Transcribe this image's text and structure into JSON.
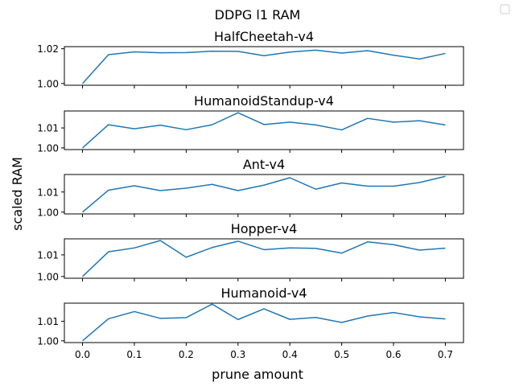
{
  "figure": {
    "suptitle": "DDPG l1 RAM",
    "ylabel": "scaled RAM",
    "xlabel": "prune amount"
  },
  "chart_data": [
    {
      "type": "line",
      "title": "HalfCheetah-v4",
      "x": [
        0.0,
        0.05,
        0.1,
        0.15,
        0.2,
        0.25,
        0.3,
        0.35,
        0.4,
        0.45,
        0.5,
        0.55,
        0.6,
        0.65,
        0.7
      ],
      "y": [
        1.0,
        1.0166,
        1.0182,
        1.0177,
        1.0178,
        1.0186,
        1.0185,
        1.016,
        1.0181,
        1.0192,
        1.0175,
        1.0189,
        1.0163,
        1.0141,
        1.0173
      ],
      "ylim": [
        0.999,
        1.0212
      ],
      "yticks": [
        1.0,
        1.02
      ],
      "ytick_labels": [
        "1.00",
        "1.02"
      ],
      "xlim": [
        -0.035,
        0.735
      ],
      "color": "#1f77b4"
    },
    {
      "type": "line",
      "title": "HumanoidStandup-v4",
      "x": [
        0.0,
        0.05,
        0.1,
        0.15,
        0.2,
        0.25,
        0.3,
        0.35,
        0.4,
        0.45,
        0.5,
        0.55,
        0.6,
        0.65,
        0.7
      ],
      "y": [
        1.0,
        1.0116,
        1.0096,
        1.0114,
        1.0091,
        1.0116,
        1.0176,
        1.0117,
        1.0129,
        1.0115,
        1.009,
        1.0148,
        1.0129,
        1.0136,
        1.0115
      ],
      "ylim": [
        0.99915,
        1.0185
      ],
      "yticks": [
        1.0,
        1.01
      ],
      "ytick_labels": [
        "1.00",
        "1.01"
      ],
      "xlim": [
        -0.035,
        0.735
      ],
      "color": "#1f77b4"
    },
    {
      "type": "line",
      "title": "Ant-v4",
      "x": [
        0.0,
        0.05,
        0.1,
        0.15,
        0.2,
        0.25,
        0.3,
        0.35,
        0.4,
        0.45,
        0.5,
        0.55,
        0.6,
        0.65,
        0.7
      ],
      "y": [
        1.0,
        1.0109,
        1.0131,
        1.0107,
        1.0119,
        1.0138,
        1.0107,
        1.0134,
        1.0171,
        1.0114,
        1.0145,
        1.0129,
        1.0129,
        1.0147,
        1.0178
      ],
      "ylim": [
        0.9991,
        1.0187
      ],
      "yticks": [
        1.0,
        1.01
      ],
      "ytick_labels": [
        "1.00",
        "1.01"
      ],
      "xlim": [
        -0.035,
        0.735
      ],
      "color": "#1f77b4"
    },
    {
      "type": "line",
      "title": "Hopper-v4",
      "x": [
        0.0,
        0.05,
        0.1,
        0.15,
        0.2,
        0.25,
        0.3,
        0.35,
        0.4,
        0.45,
        0.5,
        0.55,
        0.6,
        0.65,
        0.7
      ],
      "y": [
        1.0,
        1.0114,
        1.0132,
        1.0166,
        1.0089,
        1.0134,
        1.0163,
        1.0124,
        1.0132,
        1.013,
        1.0108,
        1.016,
        1.0147,
        1.0122,
        1.0131
      ],
      "ylim": [
        0.9992,
        1.0174
      ],
      "yticks": [
        1.0,
        1.01
      ],
      "ytick_labels": [
        "1.00",
        "1.01"
      ],
      "xlim": [
        -0.035,
        0.735
      ],
      "color": "#1f77b4"
    },
    {
      "type": "line",
      "title": "Humanoid-v4",
      "x": [
        0.0,
        0.05,
        0.1,
        0.15,
        0.2,
        0.25,
        0.3,
        0.35,
        0.4,
        0.45,
        0.5,
        0.55,
        0.6,
        0.65,
        0.7
      ],
      "y": [
        1.0,
        1.0113,
        1.015,
        1.0115,
        1.0119,
        1.0188,
        1.0109,
        1.0164,
        1.011,
        1.012,
        1.0094,
        1.0127,
        1.0145,
        1.0123,
        1.0112
      ],
      "ylim": [
        0.9991,
        1.0193
      ],
      "yticks": [
        1.0,
        1.01
      ],
      "ytick_labels": [
        "1.00",
        "1.01"
      ],
      "xlim": [
        -0.035,
        0.735
      ],
      "color": "#1f77b4"
    }
  ],
  "xaxis": {
    "ticks": [
      0.0,
      0.1,
      0.2,
      0.3,
      0.4,
      0.5,
      0.6,
      0.7
    ],
    "tick_labels": [
      "0.0",
      "0.1",
      "0.2",
      "0.3",
      "0.4",
      "0.5",
      "0.6",
      "0.7"
    ]
  },
  "legend": {
    "placement": "top-right",
    "entries": []
  }
}
